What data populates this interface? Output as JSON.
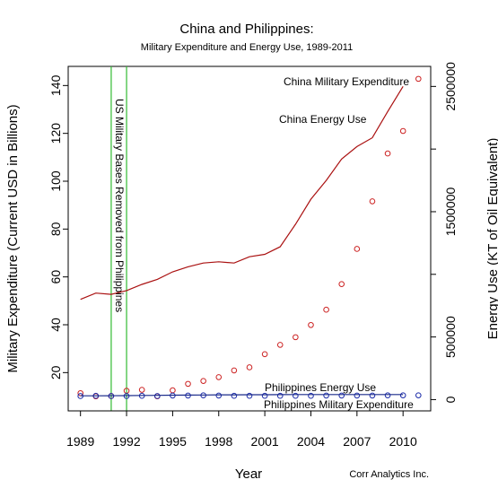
{
  "chart_data": {
    "type": "line",
    "title": "China and Philippines:",
    "subtitle": "Military Expenditure and Energy Use, 1989-2011",
    "xlabel": "Year",
    "ylabel_left": "Military Expenditure (Current USD in Billions)",
    "ylabel_right": "Energy Use (KT of Oil Equivalent)",
    "credit": "Corr Analytics Inc.",
    "xlim": [
      1988.2,
      2011.8
    ],
    "ylim_left": [
      4,
      148
    ],
    "ylim_right": [
      -90000,
      2660000
    ],
    "x_ticks": [
      1989,
      1992,
      1995,
      1998,
      2001,
      2004,
      2007,
      2010
    ],
    "x_tick_labels": [
      "1989",
      "1992",
      "1995",
      "1998",
      "2001",
      "2004",
      "2007",
      "2010"
    ],
    "y_left_ticks": [
      20,
      40,
      60,
      80,
      100,
      120,
      140
    ],
    "y_left_tick_labels": [
      "20",
      "40",
      "60",
      "80",
      "100",
      "120",
      "140"
    ],
    "y_right_ticks": [
      0,
      500000,
      1000000,
      1500000,
      2000000,
      2500000
    ],
    "y_right_tick_labels": [
      "0",
      "500000",
      "",
      "1500000",
      "",
      "2500000"
    ],
    "series": [
      {
        "name": "China Military Expenditure",
        "kind": "points",
        "axis": "left",
        "color": "#cc2222",
        "x": [
          1989,
          1990,
          1991,
          1992,
          1993,
          1994,
          1995,
          1996,
          1997,
          1998,
          1999,
          2000,
          2001,
          2002,
          2003,
          2004,
          2005,
          2006,
          2007,
          2008,
          2009,
          2010,
          2011
        ],
        "values": [
          11.4,
          10.1,
          10.2,
          12.4,
          12.8,
          10.1,
          12.6,
          15.3,
          16.5,
          18.1,
          20.9,
          22.2,
          27.7,
          31.6,
          34.8,
          39.9,
          46.3,
          57.0,
          71.7,
          91.6,
          111.6,
          121.0,
          142.8
        ]
      },
      {
        "name": "China Energy Use",
        "kind": "line",
        "axis": "right",
        "color": "#aa1111",
        "x": [
          1989,
          1990,
          1991,
          1992,
          1993,
          1994,
          1995,
          1996,
          1997,
          1998,
          1999,
          2000,
          2001,
          2002,
          2003,
          2004,
          2005,
          2006,
          2007,
          2008,
          2009,
          2010
        ],
        "values": [
          800000,
          850000,
          840000,
          870000,
          920000,
          960000,
          1020000,
          1060000,
          1090000,
          1100000,
          1090000,
          1140000,
          1160000,
          1220000,
          1400000,
          1600000,
          1750000,
          1920000,
          2020000,
          2090000,
          2300000,
          2500000
        ]
      },
      {
        "name": "Philippines Military Expenditure",
        "kind": "points",
        "axis": "left",
        "color": "#1a2aa8",
        "x": [
          1989,
          1990,
          1991,
          1992,
          1993,
          1994,
          1995,
          1996,
          1997,
          1998,
          1999,
          2000,
          2001,
          2002,
          2003,
          2004,
          2005,
          2006,
          2007,
          2008,
          2009,
          2010,
          2011
        ],
        "values": [
          10.2,
          10.3,
          10.2,
          10.2,
          10.3,
          10.2,
          10.4,
          10.4,
          10.5,
          10.4,
          10.3,
          10.3,
          10.3,
          10.3,
          10.3,
          10.3,
          10.4,
          10.4,
          10.4,
          10.4,
          10.5,
          10.5,
          10.5
        ]
      },
      {
        "name": "Philippines Energy Use",
        "kind": "line",
        "axis": "right",
        "color": "#1a2a8a",
        "x": [
          1989,
          1990,
          1991,
          1992,
          1993,
          1994,
          1995,
          1996,
          1997,
          1998,
          1999,
          2000,
          2001,
          2002,
          2003,
          2004,
          2005,
          2006,
          2007,
          2008,
          2009,
          2010
        ],
        "values": [
          30000,
          30500,
          31000,
          32000,
          33000,
          34000,
          35000,
          36000,
          37000,
          38000,
          38500,
          39000,
          39000,
          39500,
          40000,
          40000,
          40500,
          40500,
          40000,
          40000,
          40000,
          40000
        ]
      }
    ],
    "vlines": [
      1991,
      1992
    ],
    "vline_color": "#33bb33",
    "annotations": {
      "china_mil": "China Military Expenditure",
      "china_energy": "China Energy Use",
      "phil_energy": "Philippines Energy Use",
      "phil_mil": "Philippines Military Expenditure",
      "us_bases": "US Military Bases Removed from Philippines"
    },
    "grid": false,
    "legend": "none"
  }
}
